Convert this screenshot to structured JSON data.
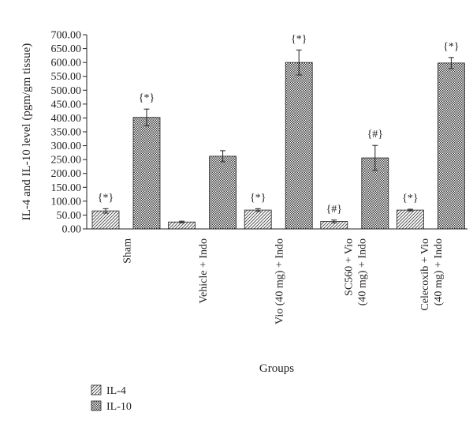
{
  "chart_data": {
    "type": "bar",
    "ylabel": "IL-4 and IL-10 level (pgm/gm tissue)",
    "xlabel": "Groups",
    "ylim": [
      0,
      700
    ],
    "ytick_step": 50,
    "ytick_labels": [
      "0.00",
      "50.00",
      "100.00",
      "150.00",
      "200.00",
      "250.00",
      "300.00",
      "350.00",
      "400.00",
      "450.00",
      "500.00",
      "550.00",
      "600.00",
      "650.00",
      "700.00"
    ],
    "categories": [
      [
        "Sham"
      ],
      [
        "Vehicle + Indo"
      ],
      [
        "Vio (40 mg) + Indo"
      ],
      [
        "SC560 + Vio",
        "(40 mg) + Indo"
      ],
      [
        "Celecoxib + Vio",
        "(40 mg) + Indo"
      ]
    ],
    "series": [
      {
        "name": "IL-4",
        "pattern": "diagonal-hatch",
        "values": [
          65,
          25,
          68,
          27,
          68
        ],
        "errors": [
          8,
          3,
          5,
          5,
          3
        ],
        "annotations": [
          "{*}",
          "",
          "{*}",
          "{#}",
          "{*}"
        ]
      },
      {
        "name": "IL-10",
        "pattern": "crosshatch",
        "values": [
          402,
          262,
          600,
          256,
          598
        ],
        "errors": [
          30,
          20,
          45,
          45,
          20
        ],
        "annotations": [
          "{*}",
          "",
          "{*}",
          "{#}",
          "{*}"
        ]
      }
    ],
    "grid": false,
    "legend_position": "bottom-left"
  }
}
